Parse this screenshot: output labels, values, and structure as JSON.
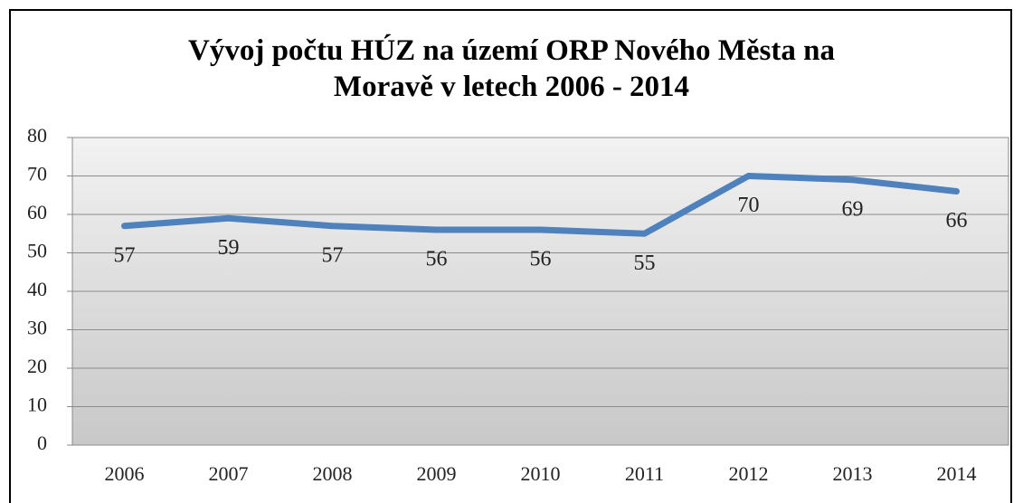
{
  "chart_data": {
    "type": "line",
    "title": "Vývoj počtu HÚZ na území ORP Nového Města na\nMoravě  v letech 2006 - 2014",
    "categories": [
      "2006",
      "2007",
      "2008",
      "2009",
      "2010",
      "2011",
      "2012",
      "2013",
      "2014"
    ],
    "values": [
      57,
      59,
      57,
      56,
      56,
      55,
      70,
      69,
      66
    ],
    "color": "#4f81bd",
    "ylim": [
      0,
      80
    ],
    "yticks": [
      0,
      10,
      20,
      30,
      40,
      50,
      60,
      70,
      80
    ],
    "grid": true
  }
}
